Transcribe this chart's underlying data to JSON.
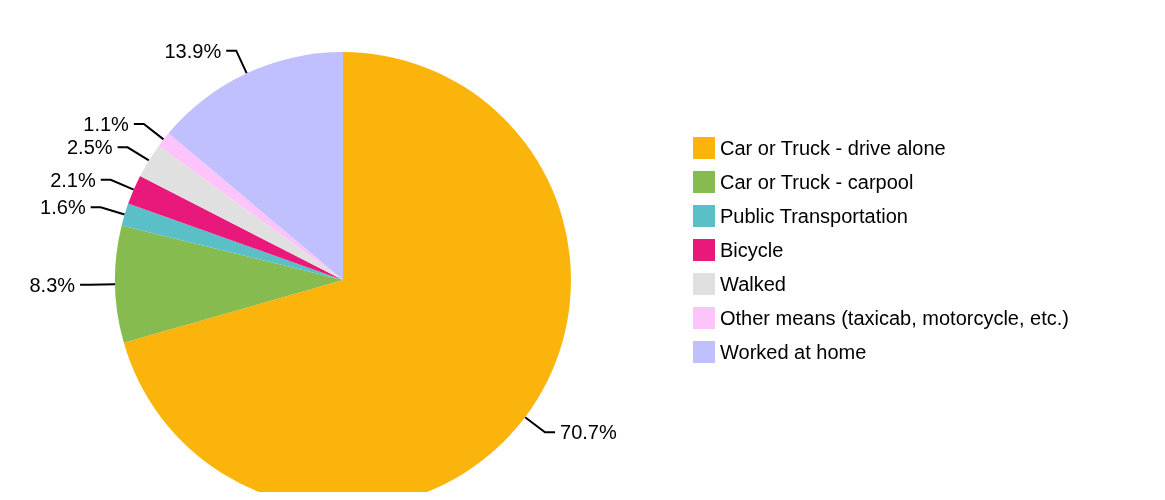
{
  "chart_data": {
    "type": "pie",
    "categories": [
      "Car or Truck - drive alone",
      "Car or Truck - carpool",
      "Public Transportation",
      "Bicycle",
      "Walked",
      "Other means (taxicab, motorcycle, etc.)",
      "Worked at home"
    ],
    "values": [
      70.7,
      8.3,
      1.6,
      2.1,
      2.5,
      1.1,
      13.9
    ],
    "colors": [
      "#fbb40c",
      "#86bb4f",
      "#5bbfc8",
      "#e8197a",
      "#e0e0e0",
      "#fdc3fb",
      "#c0c0ff"
    ],
    "value_labels": [
      "70.7%",
      "8.3%",
      "1.6%",
      "2.1%",
      "2.5%",
      "1.1%",
      "13.9%"
    ],
    "legend": "right"
  }
}
